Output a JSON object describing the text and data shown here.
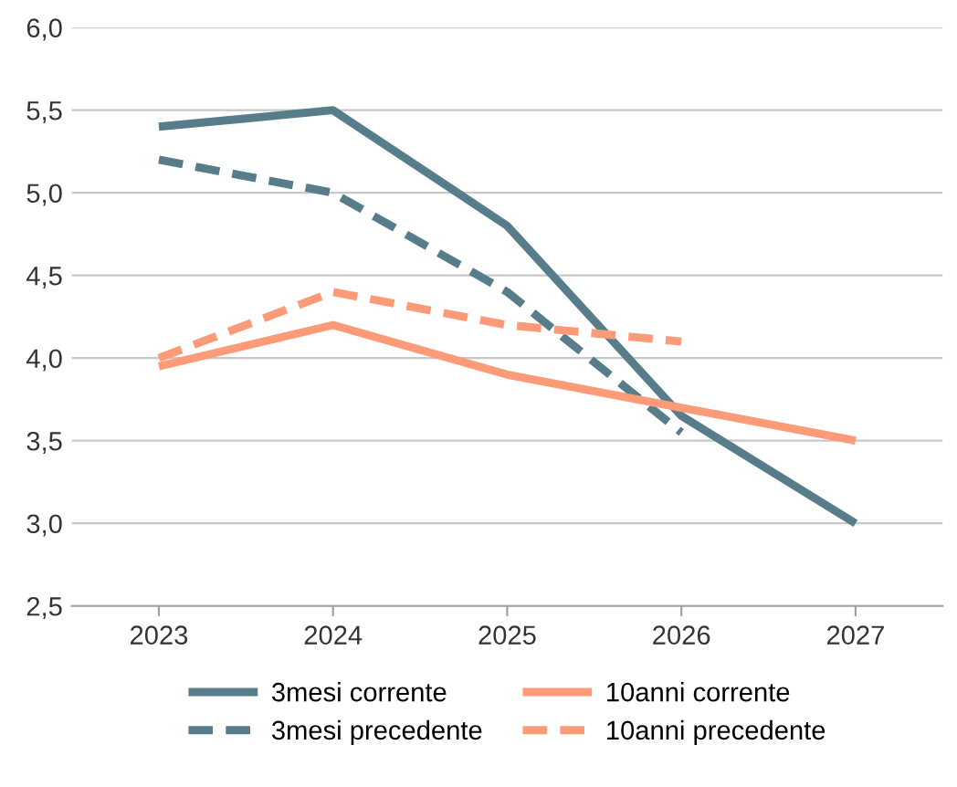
{
  "chart_data": {
    "type": "line",
    "categories": [
      "2023",
      "2024",
      "2025",
      "2026",
      "2027"
    ],
    "series": [
      {
        "name": "3mesi corrente",
        "color": "#587d8a",
        "values": [
          5.4,
          5.5,
          4.8,
          3.65,
          3.0
        ],
        "line_style": "solid"
      },
      {
        "name": "3mesi precedente",
        "color": "#587d8a",
        "values": [
          5.2,
          5.0,
          4.4,
          3.55,
          null
        ],
        "line_style": "dashed"
      },
      {
        "name": "10anni corrente",
        "color": "#fd9a78",
        "values": [
          3.95,
          4.2,
          3.9,
          3.7,
          3.5
        ],
        "line_style": "solid"
      },
      {
        "name": "10anni precedente",
        "color": "#fd9a78",
        "values": [
          4.0,
          4.4,
          4.2,
          4.1,
          null
        ],
        "line_style": "dashed"
      }
    ],
    "ylim": [
      2.5,
      6.0
    ],
    "yticks": [
      {
        "value": 2.5,
        "label": "2,5"
      },
      {
        "value": 3.0,
        "label": "3,0"
      },
      {
        "value": 3.5,
        "label": "3,5"
      },
      {
        "value": 4.0,
        "label": "4,0"
      },
      {
        "value": 4.5,
        "label": "4,5"
      },
      {
        "value": 5.0,
        "label": "5,0"
      },
      {
        "value": 5.5,
        "label": "5,5"
      },
      {
        "value": 6.0,
        "label": "6,0"
      }
    ],
    "grid": "y",
    "legend": "bottom",
    "marker": "none"
  }
}
